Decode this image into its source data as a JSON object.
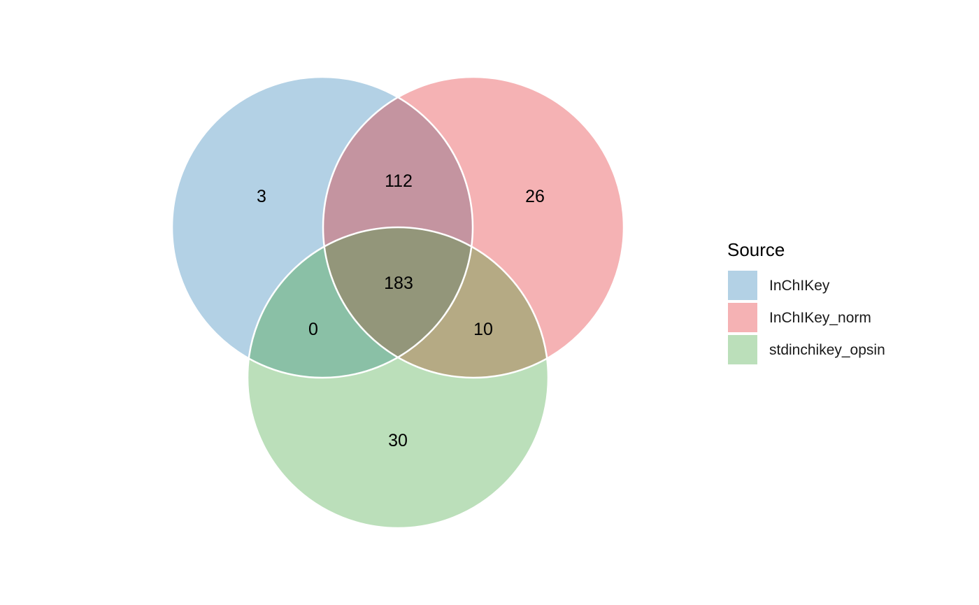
{
  "chart_data": {
    "type": "venn",
    "sets": [
      {
        "name": "InChIKey",
        "color": "#b3d1e5"
      },
      {
        "name": "InChIKey_norm",
        "color": "#f5b2b4"
      },
      {
        "name": "stdinchikey_opsin",
        "color": "#bbdfba"
      }
    ],
    "regions": [
      {
        "sets": [
          "InChIKey"
        ],
        "count": 3,
        "color": "#b3d1e5"
      },
      {
        "sets": [
          "InChIKey_norm"
        ],
        "count": 26,
        "color": "#f5b2b4"
      },
      {
        "sets": [
          "stdinchikey_opsin"
        ],
        "count": 30,
        "color": "#bbdfba"
      },
      {
        "sets": [
          "InChIKey",
          "InChIKey_norm"
        ],
        "count": 112,
        "color": "#c494a0"
      },
      {
        "sets": [
          "InChIKey",
          "stdinchikey_opsin"
        ],
        "count": 0,
        "color": "#8ac0a6"
      },
      {
        "sets": [
          "InChIKey_norm",
          "stdinchikey_opsin"
        ],
        "count": 10,
        "color": "#b5aa84"
      },
      {
        "sets": [
          "InChIKey",
          "InChIKey_norm",
          "stdinchikey_opsin"
        ],
        "count": 183,
        "color": "#93967a"
      }
    ],
    "legend": {
      "title": "Source",
      "position": "right"
    },
    "outline_color": "#ffffff"
  }
}
